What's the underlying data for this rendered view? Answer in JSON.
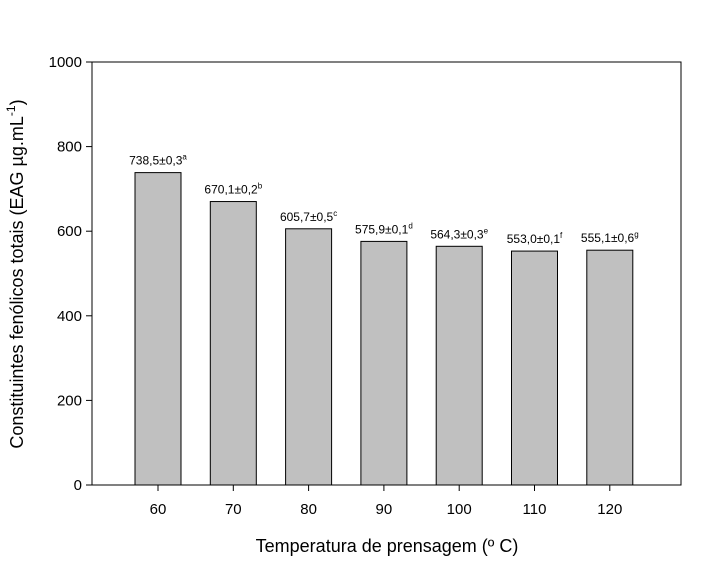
{
  "chart_data": {
    "type": "bar",
    "title": "",
    "xlabel": "Temperatura de prensagem (º C)",
    "ylabel": {
      "main": "Constituintes fenólicos totais (EAG µg.mL",
      "sup": "-1",
      "end": ")"
    },
    "categories": [
      "60",
      "70",
      "80",
      "90",
      "100",
      "110",
      "120"
    ],
    "values": [
      738.5,
      670.1,
      605.7,
      575.9,
      564.3,
      553.0,
      555.1
    ],
    "data_labels": [
      {
        "text": "738,5±0,3",
        "sup": "a"
      },
      {
        "text": "670,1±0,2",
        "sup": "b"
      },
      {
        "text": "605,7±0,5",
        "sup": "c"
      },
      {
        "text": "575,9±0,1",
        "sup": "d"
      },
      {
        "text": "564,3±0,3",
        "sup": "e"
      },
      {
        "text": "553,0±0,1",
        "sup": "f"
      },
      {
        "text": "555,1±0,6",
        "sup": "g"
      }
    ],
    "ylim": [
      0,
      1000
    ],
    "yticks": [
      "0",
      "200",
      "400",
      "600",
      "800",
      "1000"
    ],
    "bar_color": "#c0c0c0",
    "grid": false,
    "legend": "none"
  }
}
